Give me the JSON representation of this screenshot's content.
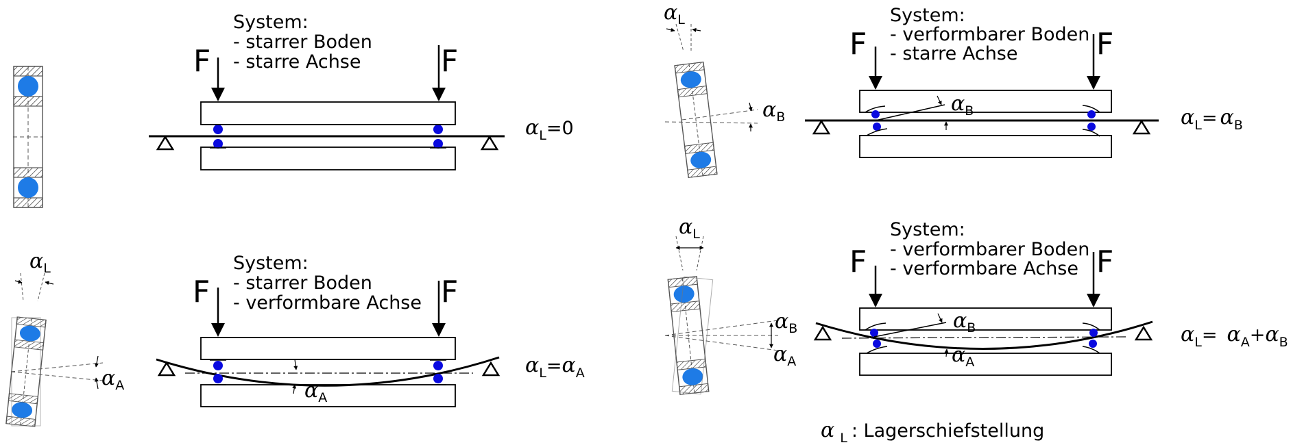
{
  "panels": [
    {
      "id": "p1",
      "system_heading": "System:",
      "system_lines": [
        "- starrer Boden",
        "- starre Achse"
      ],
      "force_label": "F",
      "result": {
        "lhs_sym": "α",
        "lhs_sub": "L",
        "rhs_text": "=0",
        "rhs_terms": []
      }
    },
    {
      "id": "p2",
      "system_heading": "System:",
      "system_lines": [
        "- verformbarer Boden",
        "- starre Achse"
      ],
      "force_label": "F",
      "bearing_labels": [
        {
          "sym": "α",
          "sub": "L"
        },
        {
          "sym": "α",
          "sub": "B"
        }
      ],
      "beam_labels": [
        {
          "sym": "α",
          "sub": "B"
        }
      ],
      "result": {
        "lhs_sym": "α",
        "lhs_sub": "L",
        "rhs_text": "=",
        "rhs_terms": [
          {
            "sym": "α",
            "sub": "B"
          }
        ]
      }
    },
    {
      "id": "p3",
      "system_heading": "System:",
      "system_lines": [
        "- starrer Boden",
        "- verformbare Achse"
      ],
      "force_label": "F",
      "bearing_labels": [
        {
          "sym": "α",
          "sub": "L"
        },
        {
          "sym": "α",
          "sub": "A"
        }
      ],
      "beam_labels": [
        {
          "sym": "α",
          "sub": "A"
        }
      ],
      "result": {
        "lhs_sym": "α",
        "lhs_sub": "L",
        "rhs_text": "=",
        "rhs_terms": [
          {
            "sym": "α",
            "sub": "A"
          }
        ]
      }
    },
    {
      "id": "p4",
      "system_heading": "System:",
      "system_lines": [
        "- verformbarer Boden",
        "- verformbare Achse"
      ],
      "force_label": "F",
      "bearing_labels": [
        {
          "sym": "α",
          "sub": "L"
        },
        {
          "sym": "α",
          "sub": "B"
        },
        {
          "sym": "α",
          "sub": "A"
        }
      ],
      "beam_labels": [
        {
          "sym": "α",
          "sub": "B"
        },
        {
          "sym": "α",
          "sub": "A"
        }
      ],
      "result": {
        "lhs_sym": "α",
        "lhs_sub": "L",
        "rhs_text": "=",
        "rhs_terms": [
          {
            "sym": "α",
            "sub": "A"
          },
          {
            "plus": "+"
          },
          {
            "sym": "α",
            "sub": "B"
          }
        ]
      }
    }
  ],
  "legend": {
    "sym": "α",
    "sub": "L",
    "text": ": Lagerschiefstellung"
  },
  "colors": {
    "ball": "#1e7be6",
    "beam_ball": "#0a0adf",
    "line": "#000000"
  }
}
